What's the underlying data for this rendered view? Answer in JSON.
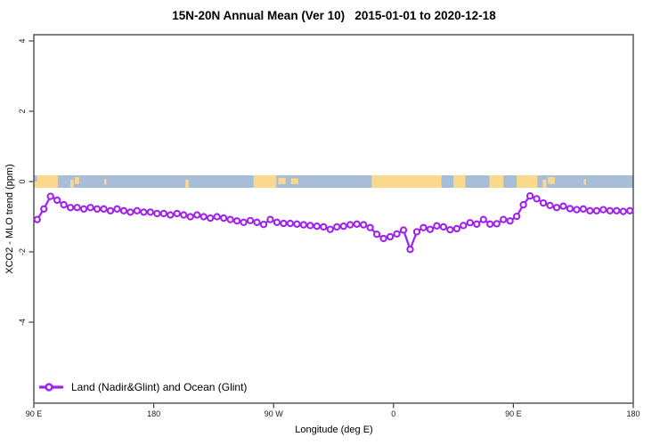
{
  "title": "15N-20N Annual Mean (Ver 10)   2015-01-01 to 2020-12-18",
  "axes": {
    "x_label": "Longitude (deg E)",
    "y_label": "XCO2 - MLO trend (ppm)",
    "x_ticks": [
      {
        "lon": 90,
        "label": "90 E"
      },
      {
        "lon": 180,
        "label": "180"
      },
      {
        "lon": 270,
        "label": "90 W"
      },
      {
        "lon": 360,
        "label": "0"
      },
      {
        "lon": 450,
        "label": "90 E"
      },
      {
        "lon": 540,
        "label": "180"
      }
    ],
    "y_ticks": [
      {
        "value": 4,
        "label": "4"
      },
      {
        "value": 2,
        "label": "2"
      },
      {
        "value": 0,
        "label": "0"
      },
      {
        "value": -2,
        "label": "-2"
      },
      {
        "value": -4,
        "label": "-4"
      }
    ]
  },
  "legend": {
    "label": "Land (Nadir&Glint) and Ocean (Glint)"
  },
  "colors": {
    "line": "#A020F0",
    "marker_fill": "#FFFFFF",
    "ocean_band": "#A8BDD8",
    "land_band": "#FAD88C",
    "axis": "#3C3C3C",
    "tick_text": "#1A1A1A"
  },
  "chart_data": {
    "type": "line",
    "title": "15N-20N Annual Mean (Ver 10)   2015-01-01 to 2020-12-18",
    "xlabel": "Longitude (deg E)",
    "ylabel": "XCO2 - MLO trend (ppm)",
    "legend_position": "bottom-left",
    "grid": false,
    "xlim_deg": [
      90,
      540
    ],
    "ylim": [
      -6.3,
      4.2
    ],
    "x_tick_labels": [
      "90 E",
      "180",
      "90 W",
      "0",
      "90 E",
      "180"
    ],
    "y_tick_values": [
      4,
      2,
      0,
      -2,
      -4
    ],
    "x_start_deg": 92.5,
    "x_step_deg": 5,
    "series": [
      {
        "name": "Land (Nadir&Glint) and Ocean (Glint)",
        "marker": "open-circle",
        "values": [
          -1.08,
          -0.78,
          -0.42,
          -0.53,
          -0.66,
          -0.74,
          -0.74,
          -0.78,
          -0.74,
          -0.78,
          -0.78,
          -0.83,
          -0.78,
          -0.83,
          -0.87,
          -0.83,
          -0.87,
          -0.87,
          -0.91,
          -0.91,
          -0.95,
          -0.91,
          -0.95,
          -1.0,
          -0.95,
          -1.0,
          -1.04,
          -1.0,
          -1.04,
          -1.08,
          -1.12,
          -1.16,
          -1.11,
          -1.16,
          -1.22,
          -1.08,
          -1.16,
          -1.19,
          -1.19,
          -1.21,
          -1.23,
          -1.25,
          -1.27,
          -1.29,
          -1.36,
          -1.29,
          -1.27,
          -1.23,
          -1.21,
          -1.23,
          -1.31,
          -1.5,
          -1.62,
          -1.57,
          -1.49,
          -1.38,
          -1.93,
          -1.43,
          -1.31,
          -1.36,
          -1.26,
          -1.29,
          -1.37,
          -1.34,
          -1.25,
          -1.17,
          -1.21,
          -1.08,
          -1.21,
          -1.2,
          -1.08,
          -1.12,
          -0.99,
          -0.66,
          -0.41,
          -0.49,
          -0.61,
          -0.68,
          -0.74,
          -0.7,
          -0.77,
          -0.8,
          -0.78,
          -0.83,
          -0.83,
          -0.8,
          -0.83,
          -0.83,
          -0.85,
          -0.83
        ]
      }
    ]
  },
  "map_band": {
    "zero_band_half_width_ppm": 0.18,
    "land_patches": [
      {
        "from": 90,
        "to": 92.3,
        "t": 0.5,
        "h": 0.5
      },
      {
        "from": 92.3,
        "to": 108,
        "t": 0,
        "h": 1
      },
      {
        "from": 117.5,
        "to": 119.8,
        "t": 0.35,
        "h": 0.65
      },
      {
        "from": 120.8,
        "to": 124,
        "t": 0.15,
        "h": 0.55
      },
      {
        "from": 142.8,
        "to": 144.6,
        "t": 0.3,
        "h": 0.45
      },
      {
        "from": 203.8,
        "to": 206.2,
        "t": 0.35,
        "h": 0.65
      },
      {
        "from": 255,
        "to": 272,
        "t": 0,
        "h": 1
      },
      {
        "from": 273.5,
        "to": 279,
        "t": 0.2,
        "h": 0.5
      },
      {
        "from": 283,
        "to": 288.5,
        "t": 0.25,
        "h": 0.45
      },
      {
        "from": 343.5,
        "to": 396,
        "t": 0,
        "h": 1
      },
      {
        "from": 405,
        "to": 414,
        "t": 0,
        "h": 1
      },
      {
        "from": 432,
        "to": 442.5,
        "t": 0,
        "h": 1
      },
      {
        "from": 452.5,
        "to": 468,
        "t": 0,
        "h": 1
      },
      {
        "from": 472,
        "to": 474.8,
        "t": 0.35,
        "h": 0.65
      },
      {
        "from": 476,
        "to": 481,
        "t": 0.15,
        "h": 0.55
      },
      {
        "from": 502.8,
        "to": 504.6,
        "t": 0.3,
        "h": 0.45
      }
    ]
  }
}
